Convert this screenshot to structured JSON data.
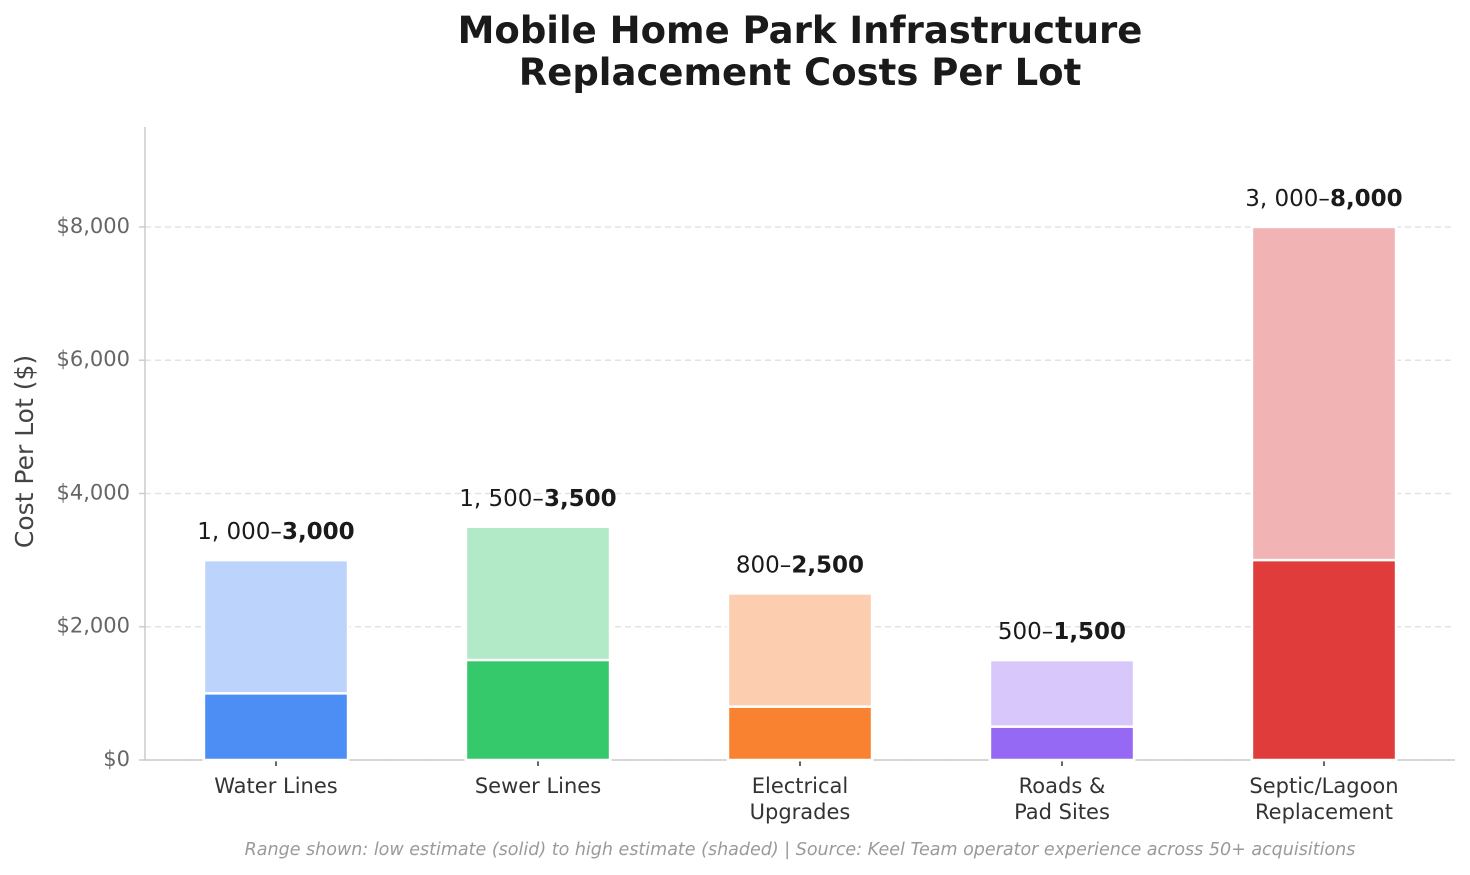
{
  "chart_data": {
    "type": "range_bar",
    "title": "Mobile Home Park Infrastructure\nReplacement Costs Per Lot",
    "y_label": "Cost Per Lot ($)",
    "footnote": "Range shown: low estimate (solid) to high estimate (shaded) | Source: Keel Team operator experience across 50+ acquisitions",
    "categories": [
      "Water Lines",
      "Sewer Lines",
      "Electrical\nUpgrades",
      "Roads &\nPad Sites",
      "Septic/Lagoon\nReplacement"
    ],
    "series": [
      {
        "values": [
          1000,
          1500,
          800,
          500,
          3000
        ],
        "value_labels": [
          "1, 000–",
          "1, 500–",
          "800–",
          "500–",
          "3, 000–"
        ],
        "colors": [
          "#4d8ef5",
          "#36c96c",
          "#f8822f",
          "#9569f3",
          "#e03c3c"
        ]
      },
      {
        "values": [
          3000,
          3500,
          2500,
          1500,
          8000
        ],
        "value_labels": [
          "3,000",
          "3,500",
          "2,500",
          "1,500",
          "8,000"
        ],
        "colors": [
          "#bcd3fb",
          "#b2eac7",
          "#fccdae",
          "#d8c7fb",
          "#f1b3b3"
        ]
      }
    ],
    "ylim": [
      0,
      9500
    ],
    "yticks": [
      {
        "value": 0,
        "label": "$0"
      },
      {
        "value": 2000,
        "label": "$2,000"
      },
      {
        "value": 4000,
        "label": "$4,000"
      },
      {
        "value": 6000,
        "label": "$6,000"
      },
      {
        "value": 8000,
        "label": "$8,000"
      }
    ],
    "grid": true
  }
}
